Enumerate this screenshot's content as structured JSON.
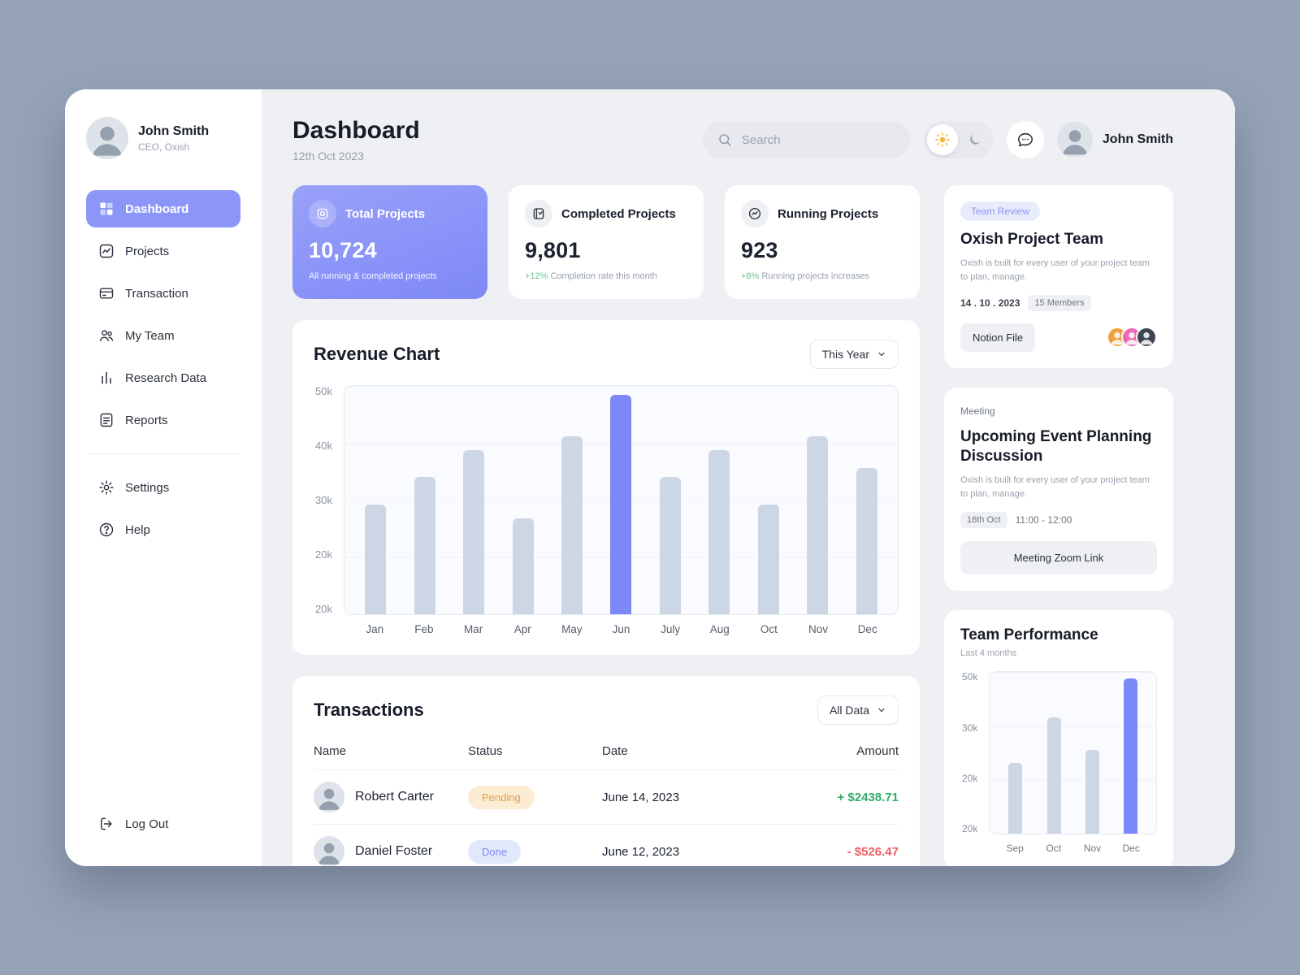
{
  "sidebar": {
    "profile": {
      "name": "John Smith",
      "role": "CEO, Oxish"
    },
    "items": [
      {
        "label": "Dashboard"
      },
      {
        "label": "Projects"
      },
      {
        "label": "Transaction"
      },
      {
        "label": "My Team"
      },
      {
        "label": "Research Data"
      },
      {
        "label": "Reports"
      }
    ],
    "secondary": [
      {
        "label": "Settings"
      },
      {
        "label": "Help"
      }
    ],
    "logout_label": "Log Out"
  },
  "header": {
    "title": "Dashboard",
    "date": "12th Oct 2023",
    "search_placeholder": "Search",
    "user_name": "John Smith"
  },
  "stats": [
    {
      "label": "Total Projects",
      "value": "10,724",
      "subtext": "All running & completed projects"
    },
    {
      "label": "Completed Projects",
      "value": "9,801",
      "delta": "+12%",
      "subtext": "Completion rate this month"
    },
    {
      "label": "Running Projects",
      "value": "923",
      "delta": "+8%",
      "subtext": "Running projects increases"
    }
  ],
  "revenue_section": {
    "title": "Revenue Chart",
    "filter_label": "This Year"
  },
  "transactions": {
    "title": "Transactions",
    "filter_label": "All Data",
    "headers": [
      "Name",
      "Status",
      "Date",
      "Amount"
    ],
    "rows": [
      {
        "name": "Robert Carter",
        "status": "Pending",
        "status_type": "pending",
        "date": "June 14, 2023",
        "amount": "+ $2438.71",
        "amount_type": "income"
      },
      {
        "name": "Daniel Foster",
        "status": "Done",
        "status_type": "done",
        "date": "June 12, 2023",
        "amount": "- $526.47",
        "amount_type": "expense"
      }
    ]
  },
  "team_card": {
    "badge": "Team Review",
    "title": "Oxish Project Team",
    "description": "Oxish is built for every user of your project team to plan, manage.",
    "date": "14 . 10 . 2023",
    "members_badge": "15 Members",
    "button_label": "Notion File"
  },
  "meeting_card": {
    "label": "Meeting",
    "title": "Upcoming Event Planning Discussion",
    "description": "Oxish is built for every user of your project team to plan, manage.",
    "date_badge": "16th Oct",
    "time_text": "11:00 - 12:00",
    "button_label": "Meeting Zoom Link"
  },
  "performance_card": {
    "title": "Team Performance",
    "subtitle": "Last 4 months"
  },
  "colors": {
    "accent": "#7d88f8",
    "bar": "#ccd6e4",
    "sidebar_active": "#8c96f8",
    "positive": "#2fae68",
    "negative": "#ef5f5f",
    "pending_bg": "#fcecd4",
    "pending_text": "#dfa04b",
    "done_bg": "#e1e8fb",
    "done_text": "#7d88f8"
  },
  "chart_data": [
    {
      "type": "bar",
      "title": "Revenue Chart",
      "categories": [
        "Jan",
        "Feb",
        "Mar",
        "Apr",
        "May",
        "Jun",
        "July",
        "Aug",
        "Oct",
        "Nov",
        "Dec"
      ],
      "values": [
        24000,
        30000,
        36000,
        21000,
        39000,
        48000,
        30000,
        36000,
        24000,
        39000,
        32000
      ],
      "highlight_index": 5,
      "ylim": [
        0,
        50000
      ],
      "yticks": [
        "50k",
        "40k",
        "30k",
        "20k",
        "20k"
      ],
      "xlabel": "",
      "ylabel": "",
      "legend": "none",
      "grid": true
    },
    {
      "type": "bar",
      "title": "Team Performance",
      "categories": [
        "Sep",
        "Oct",
        "Nov",
        "Dec"
      ],
      "values": [
        22000,
        36000,
        26000,
        48000
      ],
      "highlight_index": 3,
      "ylim": [
        0,
        50000
      ],
      "yticks": [
        "50k",
        "30k",
        "20k",
        "20k"
      ],
      "xlabel": "",
      "ylabel": "",
      "legend": "none",
      "grid": true
    }
  ]
}
